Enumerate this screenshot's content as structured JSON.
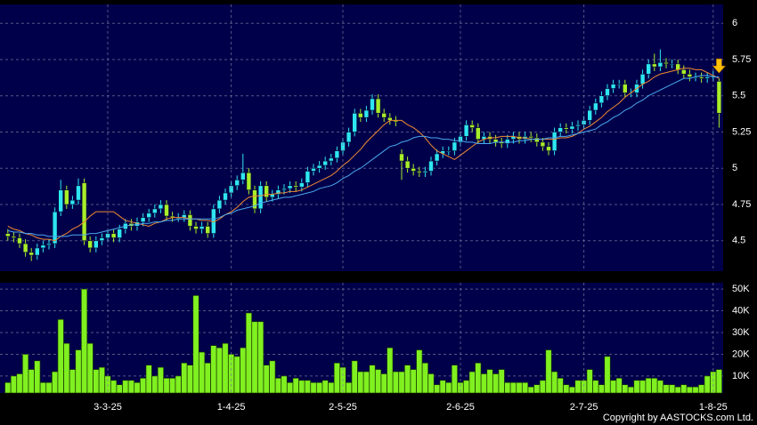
{
  "chart_data": [
    {
      "type": "candlestick",
      "up_color": "#2ee6f2",
      "down_color": "#a8ee2a",
      "grid": true,
      "ylim": [
        4.29,
        6.13
      ],
      "yticks": [
        4.5,
        4.75,
        5,
        5.25,
        5.5,
        5.75,
        6
      ],
      "open": [
        4.55,
        4.53,
        4.52,
        4.48,
        4.42,
        4.4,
        4.45,
        4.47,
        4.48,
        4.7,
        4.85,
        4.75,
        4.78,
        4.9,
        4.5,
        4.45,
        4.5,
        4.52,
        4.55,
        4.52,
        4.58,
        4.62,
        4.6,
        4.63,
        4.66,
        4.69,
        4.72,
        4.75,
        4.67,
        4.66,
        4.66,
        4.68,
        4.6,
        4.58,
        4.6,
        4.55,
        4.72,
        4.78,
        4.83,
        4.88,
        4.92,
        4.97,
        4.85,
        4.72,
        4.88,
        4.8,
        4.82,
        4.85,
        4.86,
        4.88,
        4.87,
        4.9,
        4.98,
        5.0,
        5.02,
        5.05,
        5.07,
        5.12,
        5.18,
        5.25,
        5.38,
        5.35,
        5.4,
        5.48,
        5.38,
        5.35,
        5.33,
        5.1,
        5.05,
        5.0,
        4.98,
        4.97,
        4.98,
        5.05,
        5.1,
        5.12,
        5.12,
        5.18,
        5.22,
        5.3,
        5.28,
        5.2,
        5.22,
        5.2,
        5.18,
        5.17,
        5.2,
        5.22,
        5.2,
        5.22,
        5.21,
        5.18,
        5.15,
        5.12,
        5.25,
        5.28,
        5.27,
        5.29,
        5.3,
        5.33,
        5.4,
        5.45,
        5.5,
        5.55,
        5.58,
        5.58,
        5.52,
        5.52,
        5.58,
        5.65,
        5.72,
        5.7,
        5.73,
        5.72,
        5.72,
        5.68,
        5.65,
        5.63,
        5.63,
        5.62,
        5.63,
        5.6
      ],
      "high": [
        4.58,
        4.56,
        4.55,
        4.51,
        4.45,
        4.48,
        4.5,
        4.51,
        4.73,
        4.92,
        4.88,
        4.81,
        4.93,
        4.93,
        4.53,
        4.53,
        4.55,
        4.58,
        4.58,
        4.61,
        4.65,
        4.65,
        4.66,
        4.69,
        4.72,
        4.75,
        4.78,
        4.78,
        4.7,
        4.69,
        4.71,
        4.71,
        4.63,
        4.63,
        4.63,
        4.75,
        4.81,
        4.86,
        4.91,
        4.95,
        5.1,
        5.0,
        4.88,
        4.91,
        4.91,
        4.85,
        4.88,
        4.89,
        4.91,
        4.91,
        4.93,
        5.01,
        5.03,
        5.05,
        5.08,
        5.1,
        5.15,
        5.21,
        5.28,
        5.41,
        5.41,
        5.43,
        5.51,
        5.51,
        5.41,
        5.38,
        5.36,
        5.13,
        5.08,
        5.03,
        5.01,
        5.01,
        5.08,
        5.13,
        5.15,
        5.15,
        5.21,
        5.25,
        5.33,
        5.33,
        5.31,
        5.25,
        5.25,
        5.23,
        5.21,
        5.23,
        5.25,
        5.25,
        5.25,
        5.25,
        5.24,
        5.21,
        5.18,
        5.28,
        5.31,
        5.31,
        5.32,
        5.33,
        5.36,
        5.43,
        5.48,
        5.53,
        5.58,
        5.61,
        5.61,
        5.61,
        5.55,
        5.61,
        5.68,
        5.75,
        5.79,
        5.82,
        5.76,
        5.75,
        5.75,
        5.71,
        5.68,
        5.66,
        5.66,
        5.66,
        5.67,
        5.62
      ],
      "low": [
        4.5,
        4.49,
        4.45,
        4.39,
        4.36,
        4.37,
        4.42,
        4.44,
        4.45,
        4.67,
        4.72,
        4.72,
        4.75,
        4.47,
        4.42,
        4.42,
        4.47,
        4.49,
        4.49,
        4.49,
        4.55,
        4.57,
        4.57,
        4.6,
        4.63,
        4.66,
        4.69,
        4.64,
        4.63,
        4.63,
        4.63,
        4.57,
        4.55,
        4.55,
        4.52,
        4.52,
        4.69,
        4.75,
        4.8,
        4.85,
        4.89,
        4.82,
        4.69,
        4.69,
        4.77,
        4.77,
        4.79,
        4.82,
        4.83,
        4.84,
        4.84,
        4.87,
        4.95,
        4.97,
        4.99,
        5.02,
        5.04,
        5.09,
        5.15,
        5.22,
        5.32,
        5.32,
        5.37,
        5.35,
        5.32,
        5.3,
        5.29,
        4.92,
        4.97,
        4.95,
        4.94,
        4.94,
        4.95,
        5.02,
        5.07,
        5.09,
        5.09,
        5.15,
        5.19,
        5.25,
        5.17,
        5.17,
        5.17,
        5.15,
        5.14,
        5.14,
        5.17,
        5.17,
        5.17,
        5.18,
        5.15,
        5.12,
        5.09,
        5.09,
        5.22,
        5.24,
        5.24,
        5.26,
        5.27,
        5.3,
        5.37,
        5.42,
        5.47,
        5.52,
        5.55,
        5.49,
        5.49,
        5.49,
        5.55,
        5.62,
        5.67,
        5.67,
        5.69,
        5.69,
        5.65,
        5.62,
        5.6,
        5.6,
        5.59,
        5.59,
        5.6,
        5.28
      ],
      "close": [
        4.53,
        4.52,
        4.48,
        4.42,
        4.4,
        4.45,
        4.47,
        4.48,
        4.7,
        4.85,
        4.75,
        4.78,
        4.88,
        4.5,
        4.45,
        4.5,
        4.52,
        4.55,
        4.52,
        4.58,
        4.62,
        4.6,
        4.63,
        4.66,
        4.69,
        4.72,
        4.75,
        4.67,
        4.66,
        4.66,
        4.68,
        4.6,
        4.58,
        4.6,
        4.55,
        4.72,
        4.78,
        4.83,
        4.88,
        4.92,
        4.97,
        4.85,
        4.72,
        4.88,
        4.8,
        4.82,
        4.85,
        4.86,
        4.88,
        4.87,
        4.9,
        4.98,
        5.0,
        5.02,
        5.05,
        5.07,
        5.12,
        5.18,
        5.25,
        5.38,
        5.35,
        5.4,
        5.48,
        5.38,
        5.35,
        5.33,
        5.32,
        5.05,
        5.0,
        4.98,
        4.97,
        4.98,
        5.05,
        5.1,
        5.12,
        5.12,
        5.18,
        5.22,
        5.3,
        5.28,
        5.2,
        5.22,
        5.2,
        5.18,
        5.17,
        5.2,
        5.22,
        5.2,
        5.22,
        5.21,
        5.18,
        5.15,
        5.12,
        5.25,
        5.28,
        5.27,
        5.29,
        5.3,
        5.33,
        5.4,
        5.45,
        5.5,
        5.55,
        5.58,
        5.58,
        5.52,
        5.52,
        5.58,
        5.65,
        5.72,
        5.7,
        5.73,
        5.72,
        5.72,
        5.68,
        5.65,
        5.63,
        5.63,
        5.62,
        5.63,
        5.64,
        5.38
      ],
      "series": [
        {
          "color": "#f08a30",
          "values": [
            4.6,
            4.58,
            4.57,
            4.55,
            4.54,
            4.52,
            4.51,
            4.51,
            4.5,
            4.53,
            4.55,
            4.58,
            4.6,
            4.63,
            4.67,
            4.7,
            4.7,
            4.7,
            4.7,
            4.67,
            4.64,
            4.63,
            4.62,
            4.61,
            4.6,
            4.62,
            4.63,
            4.65,
            4.66,
            4.66,
            4.66,
            4.65,
            4.65,
            4.64,
            4.64,
            4.63,
            4.65,
            4.68,
            4.7,
            4.73,
            4.77,
            4.8,
            4.81,
            4.81,
            4.82,
            4.82,
            4.83,
            4.83,
            4.84,
            4.84,
            4.85,
            4.87,
            4.89,
            4.91,
            4.93,
            4.95,
            4.98,
            5.02,
            5.05,
            5.09,
            5.13,
            5.18,
            5.22,
            5.26,
            5.3,
            5.33,
            5.33,
            5.33,
            5.3,
            5.28,
            5.25,
            5.21,
            5.16,
            5.12,
            5.1,
            5.08,
            5.06,
            5.09,
            5.12,
            5.15,
            5.18,
            5.2,
            5.21,
            5.21,
            5.22,
            5.22,
            5.22,
            5.21,
            5.21,
            5.2,
            5.2,
            5.2,
            5.2,
            5.2,
            5.21,
            5.21,
            5.22,
            5.24,
            5.27,
            5.29,
            5.32,
            5.35,
            5.39,
            5.42,
            5.45,
            5.49,
            5.52,
            5.55,
            5.58,
            5.6,
            5.63,
            5.65,
            5.66,
            5.67,
            5.68,
            5.69,
            5.69,
            5.68,
            5.68,
            5.66,
            5.64,
            5.62
          ]
        },
        {
          "color": "#4aa8f0",
          "values": [
            4.57,
            4.56,
            4.56,
            4.55,
            4.55,
            4.54,
            4.54,
            4.53,
            4.53,
            4.53,
            4.53,
            4.54,
            4.54,
            4.54,
            4.55,
            4.55,
            4.56,
            4.57,
            4.58,
            4.59,
            4.6,
            4.61,
            4.61,
            4.62,
            4.62,
            4.63,
            4.63,
            4.64,
            4.64,
            4.65,
            4.65,
            4.65,
            4.65,
            4.65,
            4.65,
            4.65,
            4.66,
            4.68,
            4.69,
            4.71,
            4.72,
            4.73,
            4.74,
            4.76,
            4.77,
            4.78,
            4.79,
            4.8,
            4.8,
            4.81,
            4.82,
            4.83,
            4.84,
            4.86,
            4.87,
            4.88,
            4.9,
            4.93,
            4.95,
            4.98,
            5.0,
            5.03,
            5.06,
            5.09,
            5.12,
            5.15,
            5.16,
            5.18,
            5.19,
            5.21,
            5.22,
            5.22,
            5.21,
            5.21,
            5.2,
            5.2,
            5.19,
            5.19,
            5.18,
            5.18,
            5.17,
            5.17,
            5.17,
            5.18,
            5.18,
            5.18,
            5.18,
            5.19,
            5.19,
            5.2,
            5.2,
            5.2,
            5.21,
            5.21,
            5.22,
            5.22,
            5.23,
            5.24,
            5.25,
            5.26,
            5.27,
            5.3,
            5.32,
            5.35,
            5.37,
            5.4,
            5.42,
            5.45,
            5.47,
            5.5,
            5.52,
            5.54,
            5.56,
            5.58,
            5.6,
            5.62,
            5.62,
            5.63,
            5.64,
            5.64,
            5.63,
            5.63
          ]
        }
      ]
    },
    {
      "type": "bar",
      "color": "#80f020",
      "grid": true,
      "ylim": [
        2200,
        52900
      ],
      "yticks": [
        {
          "value": 10000,
          "label": "10K"
        },
        {
          "value": 20000,
          "label": "20K"
        },
        {
          "value": 30000,
          "label": "30K"
        },
        {
          "value": 40000,
          "label": "40K"
        },
        {
          "value": 50000,
          "label": "50K"
        }
      ],
      "categories": [
        null,
        null,
        null,
        null,
        null,
        null,
        null,
        null,
        null,
        null,
        null,
        null,
        null,
        null,
        null,
        null,
        null,
        "3-3-25",
        null,
        null,
        null,
        null,
        null,
        null,
        null,
        null,
        null,
        null,
        null,
        null,
        null,
        null,
        null,
        null,
        null,
        null,
        null,
        null,
        "1-4-25",
        null,
        null,
        null,
        null,
        null,
        null,
        null,
        null,
        null,
        null,
        null,
        null,
        null,
        null,
        null,
        null,
        null,
        null,
        "2-5-25",
        null,
        null,
        null,
        null,
        null,
        null,
        null,
        null,
        null,
        null,
        null,
        null,
        null,
        null,
        null,
        null,
        null,
        null,
        null,
        "2-6-25",
        null,
        null,
        null,
        null,
        null,
        null,
        null,
        null,
        null,
        null,
        null,
        null,
        null,
        null,
        null,
        null,
        null,
        null,
        null,
        null,
        "2-7-25",
        null,
        null,
        null,
        null,
        null,
        null,
        null,
        null,
        null,
        null,
        null,
        null,
        null,
        null,
        null,
        null,
        null,
        null,
        null,
        null,
        null,
        "1-8-25",
        null
      ],
      "values": [
        7000,
        10000,
        11000,
        20000,
        13000,
        17000,
        7000,
        7000,
        12000,
        36000,
        25000,
        13000,
        22000,
        50000,
        25000,
        13000,
        14000,
        10000,
        8000,
        6000,
        8000,
        8000,
        7000,
        9000,
        15000,
        10000,
        14000,
        9000,
        9000,
        10000,
        16000,
        15000,
        47000,
        21000,
        16000,
        24000,
        23000,
        25000,
        20000,
        19000,
        23000,
        39000,
        35000,
        35000,
        15000,
        17000,
        9000,
        10000,
        7000,
        9000,
        8000,
        8000,
        7000,
        7000,
        8000,
        7000,
        16000,
        14000,
        7000,
        17000,
        12000,
        12000,
        15000,
        13000,
        11000,
        23000,
        12000,
        12000,
        15000,
        13000,
        22000,
        16000,
        11000,
        6000,
        8000,
        7000,
        15000,
        7000,
        8000,
        12000,
        16000,
        11000,
        13000,
        11000,
        13000,
        7000,
        7000,
        7000,
        7000,
        5000,
        6000,
        8000,
        22000,
        12000,
        9000,
        6000,
        5000,
        8000,
        8000,
        13000,
        8000,
        6000,
        19000,
        8000,
        9000,
        6000,
        5000,
        8000,
        8000,
        9000,
        9000,
        8000,
        6000,
        6000,
        5000,
        6000,
        5000,
        5000,
        6000,
        10000,
        12000,
        13000
      ]
    }
  ],
  "copyright": "Copyright by AASTOCKS.com Ltd."
}
